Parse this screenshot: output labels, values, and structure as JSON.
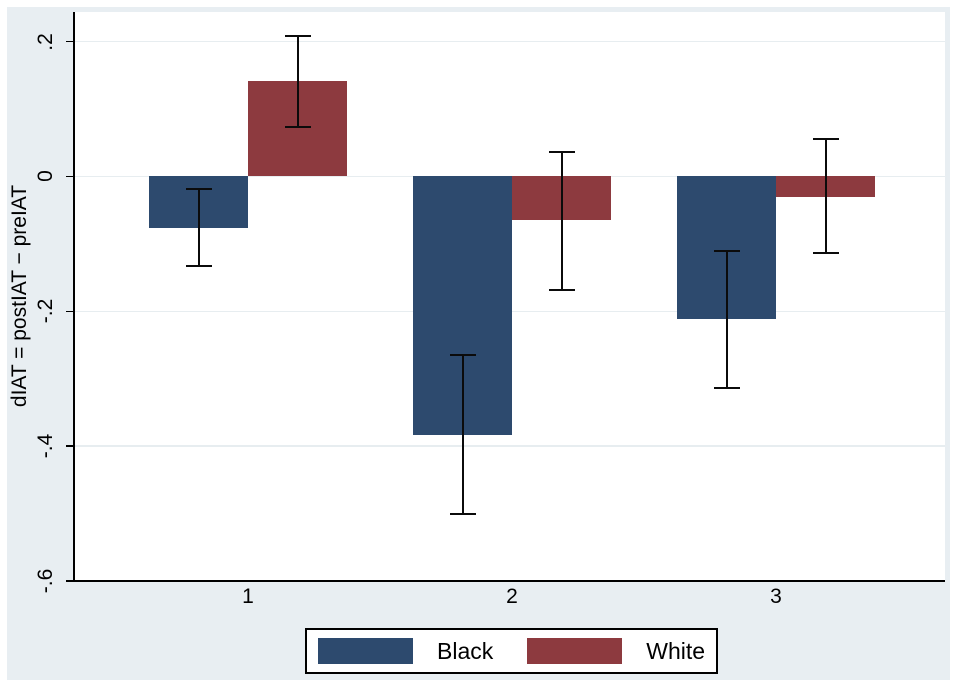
{
  "colors": {
    "figure_background": "#e8eef2",
    "plot_background": "#ffffff",
    "axis": "#000000",
    "grid": "#e7edf0",
    "error_bar": "#0b0b0b",
    "legend_border": "#000000"
  },
  "chart_data": {
    "type": "bar",
    "title": "",
    "xlabel": "",
    "ylabel": "dIAT = postIAT − preIAT",
    "categories": [
      "1",
      "2",
      "3"
    ],
    "y_ticks": [
      {
        "label": ".2",
        "value": 0.2
      },
      {
        "label": "0",
        "value": 0
      },
      {
        "label": "-.2",
        "value": -0.2
      },
      {
        "label": "-.4",
        "value": -0.4
      },
      {
        "label": "-.6",
        "value": -0.6
      }
    ],
    "ylim": [
      -0.6,
      0.244
    ],
    "grid": true,
    "error_bars": true,
    "legend_position": "bottom",
    "series": [
      {
        "name": "Black",
        "color": "#2d4a6e",
        "values": [
          -0.077,
          -0.383,
          -0.212
        ],
        "ci_low": [
          -0.133,
          -0.501,
          -0.314
        ],
        "ci_high": [
          -0.018,
          -0.265,
          -0.111
        ]
      },
      {
        "name": "White",
        "color": "#8d3a3f",
        "values": [
          0.141,
          -0.064,
          -0.03
        ],
        "ci_low": [
          0.073,
          -0.168,
          -0.113
        ],
        "ci_high": [
          0.209,
          0.037,
          0.055
        ]
      }
    ]
  }
}
